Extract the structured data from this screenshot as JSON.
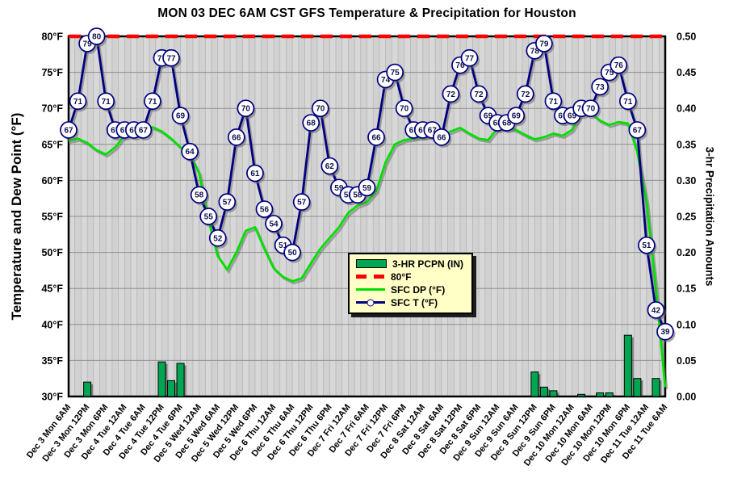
{
  "title": "MON 03 DEC 6AM CST GFS Temperature & Precipitation for Houston",
  "colors": {
    "temperature_line": "#000080",
    "dewpoint_line": "#00E000",
    "reference_line": "#FF0000",
    "precip_bar": "#00A651",
    "plot_bg": "#D8D8D8",
    "plot_bg_alt": "#D1D1D1",
    "grid_vertical": "#B3B3B3",
    "grid_horizontal": "#8F8F8F",
    "legend_bg": "#FFFFC6"
  },
  "legend": {
    "items": [
      {
        "label": "3-HR PCPN  (IN)",
        "swatch": "bar-swatch"
      },
      {
        "label": "80°F",
        "swatch": "dashed-line-swatch"
      },
      {
        "label": "SFC DP (°F)",
        "swatch": "green-line-swatch"
      },
      {
        "label": "SFC T (°F)",
        "swatch": "navy-line-marker-swatch"
      }
    ]
  },
  "chart_data": {
    "type": "line+bar meteogram",
    "x_step_hours": 3,
    "x_labels": [
      "Dec 3 Mon 6AM",
      "Dec 3 Mon 12PM",
      "Dec 3 Mon 6PM",
      "Dec 4 Tue 12AM",
      "Dec 4 Tue 6AM",
      "Dec 4 Tue 12PM",
      "Dec 4 Tue 6PM",
      "Dec 5 Wed 12AM",
      "Dec 5 Wed 6AM",
      "Dec 5 Wed 12PM",
      "Dec 5 Wed 6PM",
      "Dec 6 Thu 12AM",
      "Dec 6 Thu 6AM",
      "Dec 6 Thu 12PM",
      "Dec 6 Thu 6PM",
      "Dec 7 Fri 12AM",
      "Dec 7 Fri 6AM",
      "Dec 7 Fri 12PM",
      "Dec 7 Fri 6PM",
      "Dec 8 Sat 12AM",
      "Dec 8 Sat 6AM",
      "Dec 8 Sat 12PM",
      "Dec 8 Sat 6PM",
      "Dec 9 Sun 12AM",
      "Dec 9 Sun 6AM",
      "Dec 9 Sun 12PM",
      "Dec 9 Sun 6PM",
      "Dec 10 Mon 12AM",
      "Dec 10 Mon 6AM",
      "Dec 10 Mon 12PM",
      "Dec 10 Mon 6PM",
      "Dec 11 Tue 12AM",
      "Dec 11 Tue 6AM"
    ],
    "left_axis": {
      "title": "Temperature and Dew Point (°F)",
      "min": 30,
      "max": 80,
      "ticks": [
        "80°F",
        "75°F",
        "70°F",
        "65°F",
        "60°F",
        "55°F",
        "50°F",
        "45°F",
        "40°F",
        "35°F",
        "30°F"
      ]
    },
    "right_axis": {
      "title": "3-hr Precipitation Amounts",
      "min": 0.0,
      "max": 0.5,
      "ticks": [
        "0.50",
        "0.45",
        "0.40",
        "0.35",
        "0.30",
        "0.25",
        "0.20",
        "0.15",
        "0.10",
        "0.05",
        "0.00"
      ]
    },
    "series": [
      {
        "name": "SFC T (°F)",
        "type": "line-with-labeled-markers",
        "axis": "left",
        "values": [
          67,
          71,
          79,
          80,
          71,
          67,
          67,
          67,
          67,
          71,
          77,
          77,
          69,
          64,
          58,
          55,
          52,
          57,
          66,
          70,
          61,
          56,
          54,
          51,
          50,
          57,
          68,
          70,
          62,
          59,
          58,
          58,
          59,
          66,
          74,
          75,
          70,
          67,
          67,
          67,
          66,
          72,
          76,
          77,
          72,
          69,
          68,
          68,
          69,
          72,
          78,
          79,
          71,
          69,
          69,
          70,
          70,
          73,
          75,
          76,
          71,
          67,
          51,
          42,
          39
        ]
      },
      {
        "name": "SFC DP (°F)",
        "type": "line",
        "axis": "left",
        "values": [
          65.5,
          65.8,
          65.2,
          64.2,
          63.6,
          64.6,
          66.2,
          66.7,
          66.8,
          67.4,
          66.8,
          65.8,
          64.6,
          63.6,
          61,
          54.5,
          49.5,
          47.6,
          50,
          53,
          53.5,
          50.5,
          47.8,
          46.6,
          46,
          46.4,
          48.5,
          50.5,
          52,
          53.5,
          55.5,
          56.5,
          57,
          58.5,
          62.5,
          65,
          65.6,
          65.8,
          66,
          66.2,
          66.3,
          66.8,
          67.3,
          66.5,
          65.8,
          65.6,
          67.2,
          67.4,
          67,
          66.3,
          65.7,
          66,
          66.5,
          66.2,
          67,
          69.3,
          69.4,
          68.3,
          67.7,
          68.1,
          67.9,
          64,
          57,
          45,
          31.3
        ]
      },
      {
        "name": "3-HR PCPN (IN)",
        "type": "bar",
        "axis": "right",
        "values": [
          0,
          0,
          0.02,
          0,
          0,
          0,
          0,
          0,
          0,
          0,
          0.048,
          0.022,
          0.046,
          0,
          0,
          0,
          0,
          0,
          0,
          0,
          0,
          0,
          0,
          0,
          0,
          0,
          0,
          0,
          0,
          0,
          0,
          0,
          0,
          0,
          0,
          0,
          0,
          0,
          0,
          0,
          0,
          0,
          0,
          0,
          0,
          0,
          0,
          0,
          0,
          0,
          0.034,
          0.013,
          0.008,
          0,
          0,
          0.003,
          0,
          0.005,
          0.005,
          0,
          0.085,
          0.025,
          0,
          0.025,
          0
        ]
      },
      {
        "name": "80°F",
        "type": "reference-line",
        "axis": "left",
        "value": 80
      }
    ]
  }
}
